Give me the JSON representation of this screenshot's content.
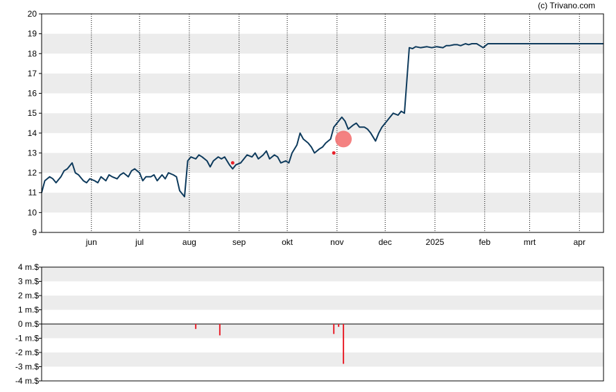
{
  "credit": "(c) Trivano.com",
  "colors": {
    "price_line": "#0d3a5c",
    "band": "#ececec",
    "volume_bar": "#e8202a",
    "marker_fill": "#f26b6b",
    "small_marker": "#e8202a"
  },
  "chart_data": [
    {
      "type": "line",
      "title": "",
      "ylim": [
        9,
        20
      ],
      "yticks": [
        9,
        10,
        11,
        12,
        13,
        14,
        15,
        16,
        17,
        18,
        19,
        20
      ],
      "grid": "alternating horizontal bands, dotted vertical lines at month starts",
      "x_tick_labels": [
        "jun",
        "jul",
        "aug",
        "sep",
        "okt",
        "nov",
        "dec",
        "2025",
        "feb",
        "mrt",
        "apr"
      ],
      "x_tick_dates": [
        "2024-06-01",
        "2024-07-01",
        "2024-08-01",
        "2024-09-01",
        "2024-10-01",
        "2024-11-01",
        "2024-12-01",
        "2025-01-01",
        "2025-02-01",
        "2025-03-01",
        "2025-04-01"
      ],
      "x_range": [
        "2024-05-01",
        "2025-04-16"
      ],
      "series": [
        {
          "x": [
            "2024-05-01",
            "2024-05-03",
            "2024-05-06",
            "2024-05-08",
            "2024-05-10",
            "2024-05-13",
            "2024-05-15",
            "2024-05-17",
            "2024-05-20",
            "2024-05-22",
            "2024-05-24",
            "2024-05-27",
            "2024-05-29",
            "2024-05-31",
            "2024-06-03",
            "2024-06-05",
            "2024-06-07",
            "2024-06-10",
            "2024-06-12",
            "2024-06-14",
            "2024-06-17",
            "2024-06-19",
            "2024-06-21",
            "2024-06-24",
            "2024-06-26",
            "2024-06-28",
            "2024-07-01",
            "2024-07-03",
            "2024-07-05",
            "2024-07-08",
            "2024-07-10",
            "2024-07-12",
            "2024-07-15",
            "2024-07-17",
            "2024-07-19",
            "2024-07-22",
            "2024-07-24",
            "2024-07-26",
            "2024-07-29",
            "2024-07-31",
            "2024-08-02",
            "2024-08-05",
            "2024-08-07",
            "2024-08-09",
            "2024-08-12",
            "2024-08-14",
            "2024-08-16",
            "2024-08-19",
            "2024-08-21",
            "2024-08-23",
            "2024-08-26",
            "2024-08-28",
            "2024-08-30",
            "2024-09-02",
            "2024-09-04",
            "2024-09-06",
            "2024-09-09",
            "2024-09-11",
            "2024-09-13",
            "2024-09-16",
            "2024-09-18",
            "2024-09-20",
            "2024-09-23",
            "2024-09-25",
            "2024-09-27",
            "2024-09-30",
            "2024-10-02",
            "2024-10-04",
            "2024-10-07",
            "2024-10-09",
            "2024-10-11",
            "2024-10-14",
            "2024-10-16",
            "2024-10-18",
            "2024-10-21",
            "2024-10-23",
            "2024-10-25",
            "2024-10-28",
            "2024-10-30",
            "2024-11-01",
            "2024-11-04",
            "2024-11-06",
            "2024-11-08",
            "2024-11-11",
            "2024-11-13",
            "2024-11-15",
            "2024-11-18",
            "2024-11-20",
            "2024-11-22",
            "2024-11-25",
            "2024-11-27",
            "2024-11-29",
            "2024-12-02",
            "2024-12-04",
            "2024-12-06",
            "2024-12-09",
            "2024-12-11",
            "2024-12-13",
            "2024-12-16",
            "2024-12-18",
            "2024-12-20",
            "2024-12-23",
            "2024-12-27",
            "2024-12-30",
            "2025-01-02",
            "2025-01-06",
            "2025-01-08",
            "2025-01-10",
            "2025-01-13",
            "2025-01-15",
            "2025-01-17",
            "2025-01-20",
            "2025-01-22",
            "2025-01-24",
            "2025-01-27",
            "2025-01-29",
            "2025-01-31",
            "2025-02-03",
            "2025-02-04",
            "2025-02-05",
            "2025-02-07",
            "2025-02-10",
            "2025-02-14",
            "2025-02-19",
            "2025-02-24",
            "2025-02-28",
            "2025-03-05",
            "2025-03-10",
            "2025-03-14",
            "2025-03-19",
            "2025-03-24",
            "2025-03-28",
            "2025-04-02",
            "2025-04-07",
            "2025-04-09",
            "2025-04-11",
            "2025-04-16"
          ],
          "y": [
            11.0,
            11.6,
            11.8,
            11.7,
            11.5,
            11.8,
            12.1,
            12.2,
            12.5,
            12.0,
            11.9,
            11.6,
            11.5,
            11.7,
            11.6,
            11.5,
            11.8,
            11.6,
            11.9,
            11.8,
            11.7,
            11.9,
            12.0,
            11.8,
            12.1,
            12.2,
            12.0,
            11.6,
            11.8,
            11.8,
            11.9,
            11.6,
            11.9,
            11.7,
            12.0,
            11.9,
            11.8,
            11.1,
            10.8,
            12.6,
            12.8,
            12.7,
            12.9,
            12.8,
            12.6,
            12.3,
            12.6,
            12.8,
            12.7,
            12.8,
            12.4,
            12.2,
            12.4,
            12.5,
            12.7,
            12.9,
            12.8,
            13.0,
            12.7,
            12.9,
            13.1,
            12.7,
            12.9,
            12.8,
            12.5,
            12.6,
            12.5,
            13.0,
            13.4,
            14.0,
            13.7,
            13.5,
            13.3,
            13.0,
            13.2,
            13.3,
            13.5,
            13.7,
            14.3,
            14.5,
            14.8,
            14.6,
            14.2,
            14.4,
            14.5,
            14.3,
            14.3,
            14.2,
            14.0,
            13.6,
            14.0,
            14.3,
            14.6,
            14.8,
            15.0,
            14.9,
            15.1,
            15.0,
            18.3,
            18.25,
            18.35,
            18.3,
            18.35,
            18.3,
            18.35,
            18.3,
            18.4,
            18.4,
            18.45,
            18.45,
            18.4,
            18.5,
            18.45,
            18.5,
            18.5,
            18.4,
            18.3,
            18.5,
            18.5,
            18.5,
            18.5,
            18.5,
            18.5,
            18.5,
            18.5,
            18.5,
            18.5,
            18.5,
            18.5,
            18.5,
            18.5,
            18.5,
            18.5,
            18.5,
            18.5,
            18.5,
            18.5
          ]
        }
      ],
      "markers": [
        {
          "x": "2024-08-28",
          "y": 12.5,
          "kind": "small"
        },
        {
          "x": "2024-10-30",
          "y": 13.0,
          "kind": "small"
        },
        {
          "x": "2024-11-05",
          "y": 13.7,
          "kind": "large"
        }
      ]
    },
    {
      "type": "bar",
      "title": "",
      "ylim": [
        -4,
        4
      ],
      "y_tick_labels": [
        "4 m.$",
        "3 m.$",
        "2 m.$",
        "1 m.$",
        "0 m.$",
        "-1 m.$",
        "-2 m.$",
        "-3 m.$",
        "-4 m.$"
      ],
      "y_tick_values": [
        4,
        3,
        2,
        1,
        0,
        -1,
        -2,
        -3,
        -4
      ],
      "x": [
        "2024-08-05",
        "2024-08-20",
        "2024-10-30",
        "2024-11-02",
        "2024-11-05"
      ],
      "values": [
        -0.35,
        -0.8,
        -0.7,
        -0.2,
        -2.8
      ]
    }
  ]
}
